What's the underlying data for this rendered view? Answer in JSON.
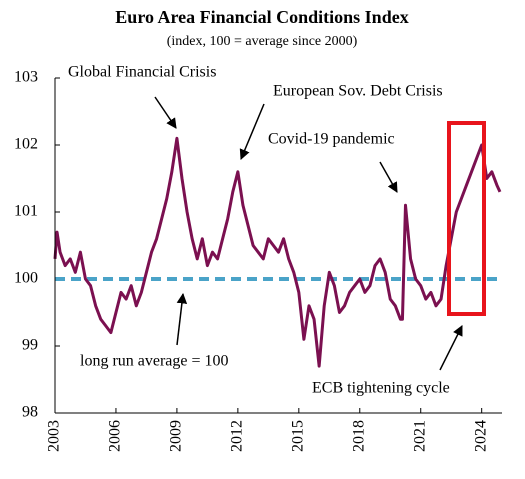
{
  "chart_data": {
    "type": "line",
    "title": "Euro Area Financial Conditions Index",
    "subtitle": "(index, 100 = average since 2000)",
    "xlim": [
      2003,
      2025
    ],
    "xticks": [
      2003,
      2006,
      2009,
      2012,
      2015,
      2018,
      2021,
      2024
    ],
    "ylim": [
      98,
      103
    ],
    "yticks": [
      98,
      99,
      100,
      101,
      102,
      103
    ],
    "reference_line": {
      "value": 100,
      "color": "#4aa3c8"
    },
    "annotations": [
      "Global Financial Crisis",
      "European Sov. Debt Crisis",
      "Covid-19 pandemic",
      "long run average  = 100",
      "ECB tightening cycle"
    ],
    "highlight_color": "#e8141c",
    "series": [
      {
        "color": "#7b1050",
        "x": [
          2003.0,
          2003.1,
          2003.25,
          2003.5,
          2003.75,
          2004.0,
          2004.25,
          2004.5,
          2004.75,
          2005.0,
          2005.25,
          2005.5,
          2005.75,
          2006.0,
          2006.25,
          2006.5,
          2006.75,
          2007.0,
          2007.25,
          2007.5,
          2007.75,
          2008.0,
          2008.25,
          2008.5,
          2008.75,
          2009.0,
          2009.25,
          2009.5,
          2009.75,
          2010.0,
          2010.25,
          2010.5,
          2010.75,
          2011.0,
          2011.25,
          2011.5,
          2011.75,
          2012.0,
          2012.25,
          2012.5,
          2012.75,
          2013.0,
          2013.25,
          2013.5,
          2013.75,
          2014.0,
          2014.25,
          2014.5,
          2014.75,
          2015.0,
          2015.25,
          2015.5,
          2015.75,
          2016.0,
          2016.25,
          2016.5,
          2016.75,
          2017.0,
          2017.25,
          2017.5,
          2017.75,
          2018.0,
          2018.25,
          2018.5,
          2018.75,
          2019.0,
          2019.25,
          2019.5,
          2019.75,
          2020.0,
          2020.1,
          2020.25,
          2020.5,
          2020.75,
          2021.0,
          2021.25,
          2021.5,
          2021.75,
          2022.0,
          2022.25,
          2022.5,
          2022.75,
          2023.0,
          2023.25,
          2023.5,
          2023.75,
          2024.0,
          2024.25,
          2024.5,
          2024.75,
          2024.9
        ],
        "values": [
          100.3,
          100.7,
          100.4,
          100.2,
          100.3,
          100.1,
          100.4,
          100.0,
          99.9,
          99.6,
          99.4,
          99.3,
          99.2,
          99.5,
          99.8,
          99.7,
          99.9,
          99.6,
          99.8,
          100.1,
          100.4,
          100.6,
          100.9,
          101.2,
          101.6,
          102.1,
          101.5,
          101.0,
          100.6,
          100.3,
          100.6,
          100.2,
          100.4,
          100.3,
          100.6,
          100.9,
          101.3,
          101.6,
          101.1,
          100.8,
          100.5,
          100.4,
          100.3,
          100.6,
          100.5,
          100.4,
          100.6,
          100.3,
          100.1,
          99.8,
          99.1,
          99.6,
          99.4,
          98.7,
          99.6,
          100.1,
          99.9,
          99.5,
          99.6,
          99.8,
          99.9,
          100.0,
          99.8,
          99.9,
          100.2,
          100.3,
          100.1,
          99.7,
          99.6,
          99.4,
          99.4,
          101.1,
          100.3,
          100.0,
          99.9,
          99.7,
          99.8,
          99.6,
          99.7,
          100.2,
          100.6,
          101.0,
          101.2,
          101.4,
          101.6,
          101.8,
          102.0,
          101.5,
          101.6,
          101.4,
          101.3
        ]
      }
    ]
  }
}
